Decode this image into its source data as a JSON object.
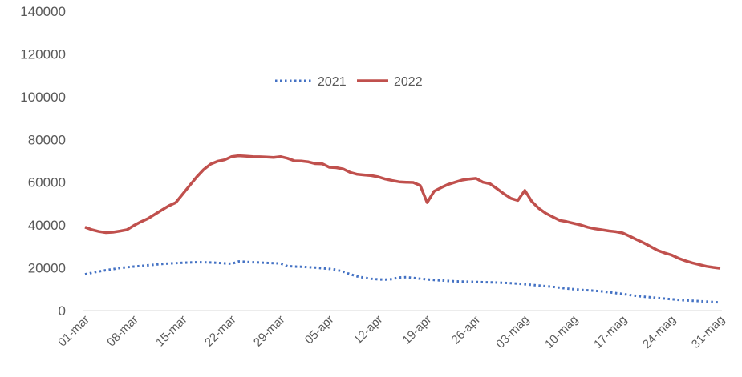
{
  "chart_data": {
    "type": "line",
    "title": "",
    "xlabel": "",
    "ylabel": "",
    "ylim": [
      0,
      140000
    ],
    "yticks": [
      "0",
      "20000",
      "40000",
      "60000",
      "80000",
      "100000",
      "120000",
      "140000"
    ],
    "xtick_labels": [
      "01-mar",
      "08-mar",
      "15-mar",
      "22-mar",
      "29-mar",
      "05-apr",
      "12-apr",
      "19-apr",
      "26-apr",
      "03-mag",
      "10-mag",
      "17-mag",
      "24-mag",
      "31-mag"
    ],
    "x_start": "01-mar",
    "x_end": "31-mag",
    "grid": false,
    "legend_position": "top-center",
    "series": [
      {
        "name": "2021",
        "color": "#4472C4",
        "style": "dotted",
        "values": [
          17000,
          17700,
          18300,
          18900,
          19400,
          19900,
          20300,
          20600,
          20900,
          21200,
          21500,
          21800,
          22000,
          22200,
          22400,
          22500,
          22600,
          22600,
          22500,
          22300,
          22100,
          21900,
          23000,
          22800,
          22600,
          22500,
          22300,
          22200,
          22000,
          20800,
          20600,
          20500,
          20300,
          20100,
          19800,
          19500,
          19100,
          18200,
          17000,
          16000,
          15400,
          14900,
          14600,
          14500,
          14700,
          15500,
          15600,
          15300,
          14900,
          14600,
          14300,
          14100,
          13900,
          13700,
          13600,
          13500,
          13400,
          13300,
          13200,
          13100,
          13000,
          12800,
          12600,
          12300,
          12000,
          11700,
          11400,
          11100,
          10700,
          10300,
          10000,
          9700,
          9500,
          9300,
          9000,
          8600,
          8200,
          7800,
          7300,
          6900,
          6500,
          6200,
          5900,
          5600,
          5300,
          5000,
          4800,
          4600,
          4400,
          4200,
          4000,
          3800
        ]
      },
      {
        "name": "2022",
        "color": "#C0504D",
        "style": "solid",
        "values": [
          39000,
          37800,
          37000,
          36500,
          36700,
          37200,
          37800,
          39800,
          41500,
          43000,
          45000,
          47000,
          49000,
          50500,
          54500,
          58500,
          62500,
          66000,
          68500,
          69800,
          70500,
          72000,
          72400,
          72200,
          72000,
          71900,
          71800,
          71600,
          72000,
          71200,
          70000,
          69900,
          69500,
          68700,
          68600,
          67000,
          66800,
          66200,
          64600,
          63700,
          63400,
          63100,
          62500,
          61500,
          60800,
          60200,
          60000,
          59900,
          58500,
          50500,
          55800,
          57500,
          59000,
          60000,
          61000,
          61500,
          61800,
          60000,
          59300,
          57000,
          54600,
          52500,
          51500,
          56200,
          51000,
          47800,
          45500,
          43800,
          42200,
          41600,
          40800,
          40000,
          39000,
          38300,
          37800,
          37300,
          36900,
          36300,
          34800,
          33200,
          31700,
          30000,
          28200,
          27000,
          26000,
          24500,
          23300,
          22300,
          21500,
          20700,
          20200,
          19800
        ]
      }
    ]
  }
}
